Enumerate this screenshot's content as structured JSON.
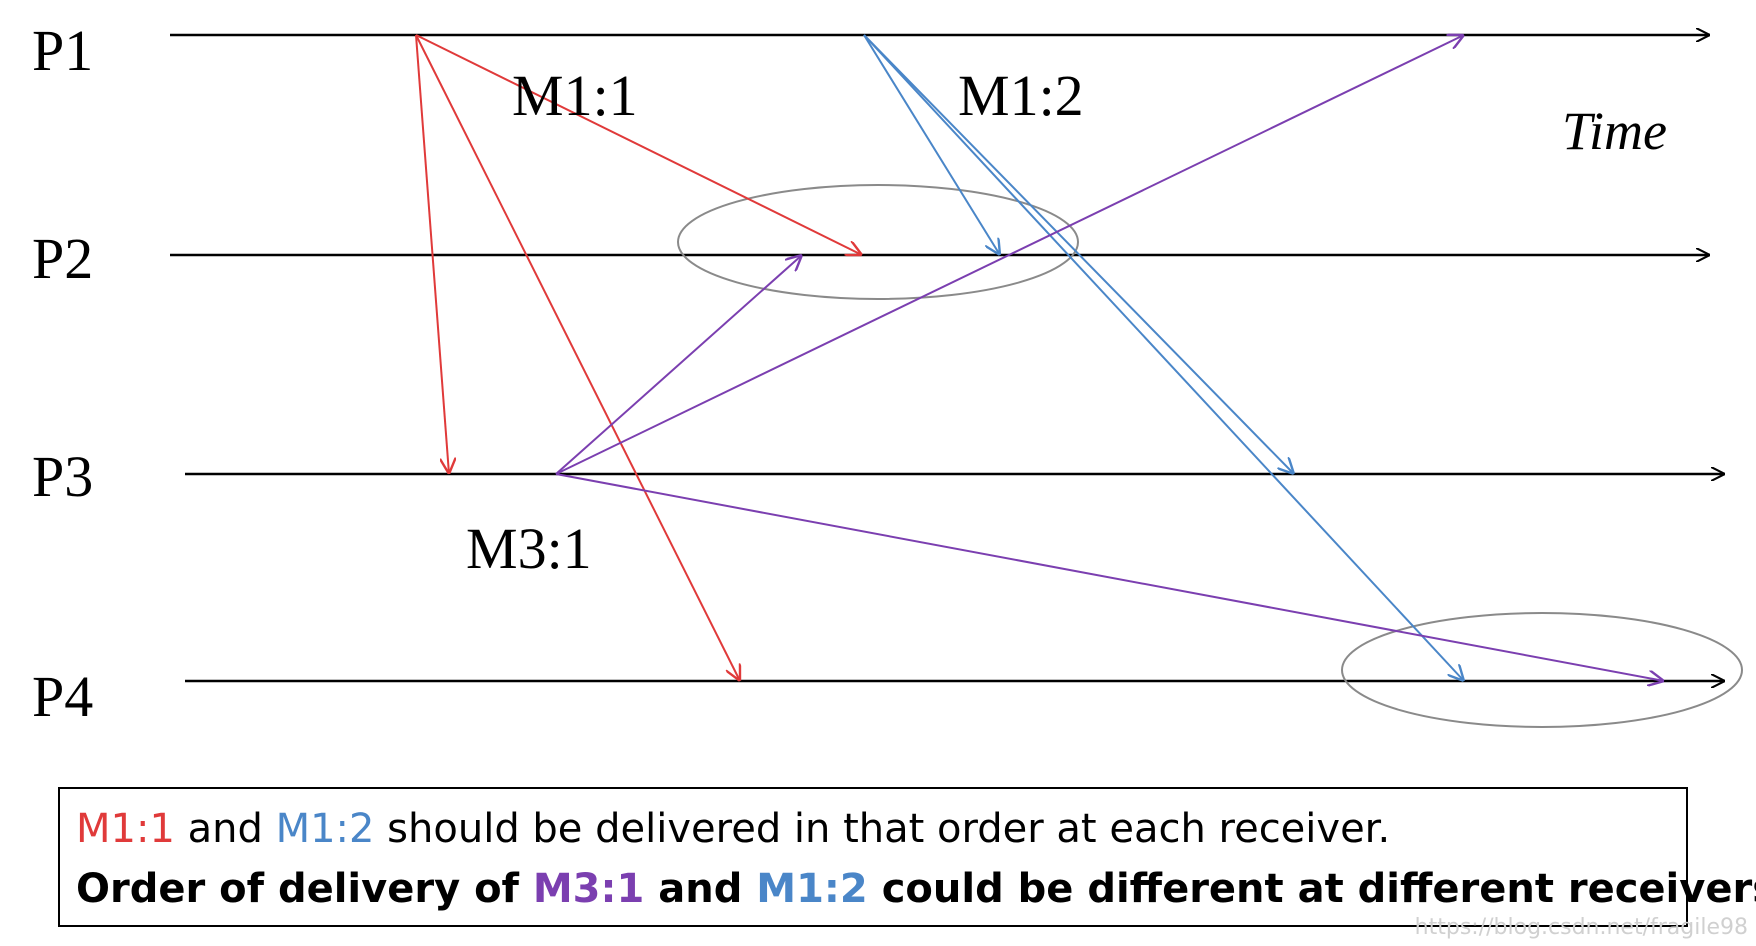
{
  "processes": [
    {
      "id": "P1",
      "label": "P1"
    },
    {
      "id": "P2",
      "label": "P2"
    },
    {
      "id": "P3",
      "label": "P3"
    },
    {
      "id": "P4",
      "label": "P4"
    }
  ],
  "time_label": "Time",
  "messages": [
    {
      "id": "m11",
      "label": "M1:1",
      "color": "#e03a3a"
    },
    {
      "id": "m12",
      "label": "M1:2",
      "color": "#4a86c8"
    },
    {
      "id": "m31",
      "label": "M3:1",
      "color": "#7b3fb0"
    }
  ],
  "caption": {
    "line1": {
      "m11": "M1:1",
      "and": " and ",
      "m12": "M1:2",
      "rest": " should be delivered in that order at each receiver."
    },
    "line2": {
      "prefix": "Order of delivery of ",
      "m31": "M3:1",
      "and": " and ",
      "m12": "M1:2",
      "rest": " could be different at different receivers."
    }
  },
  "watermark": "https://blog.csdn.net/fragile98"
}
